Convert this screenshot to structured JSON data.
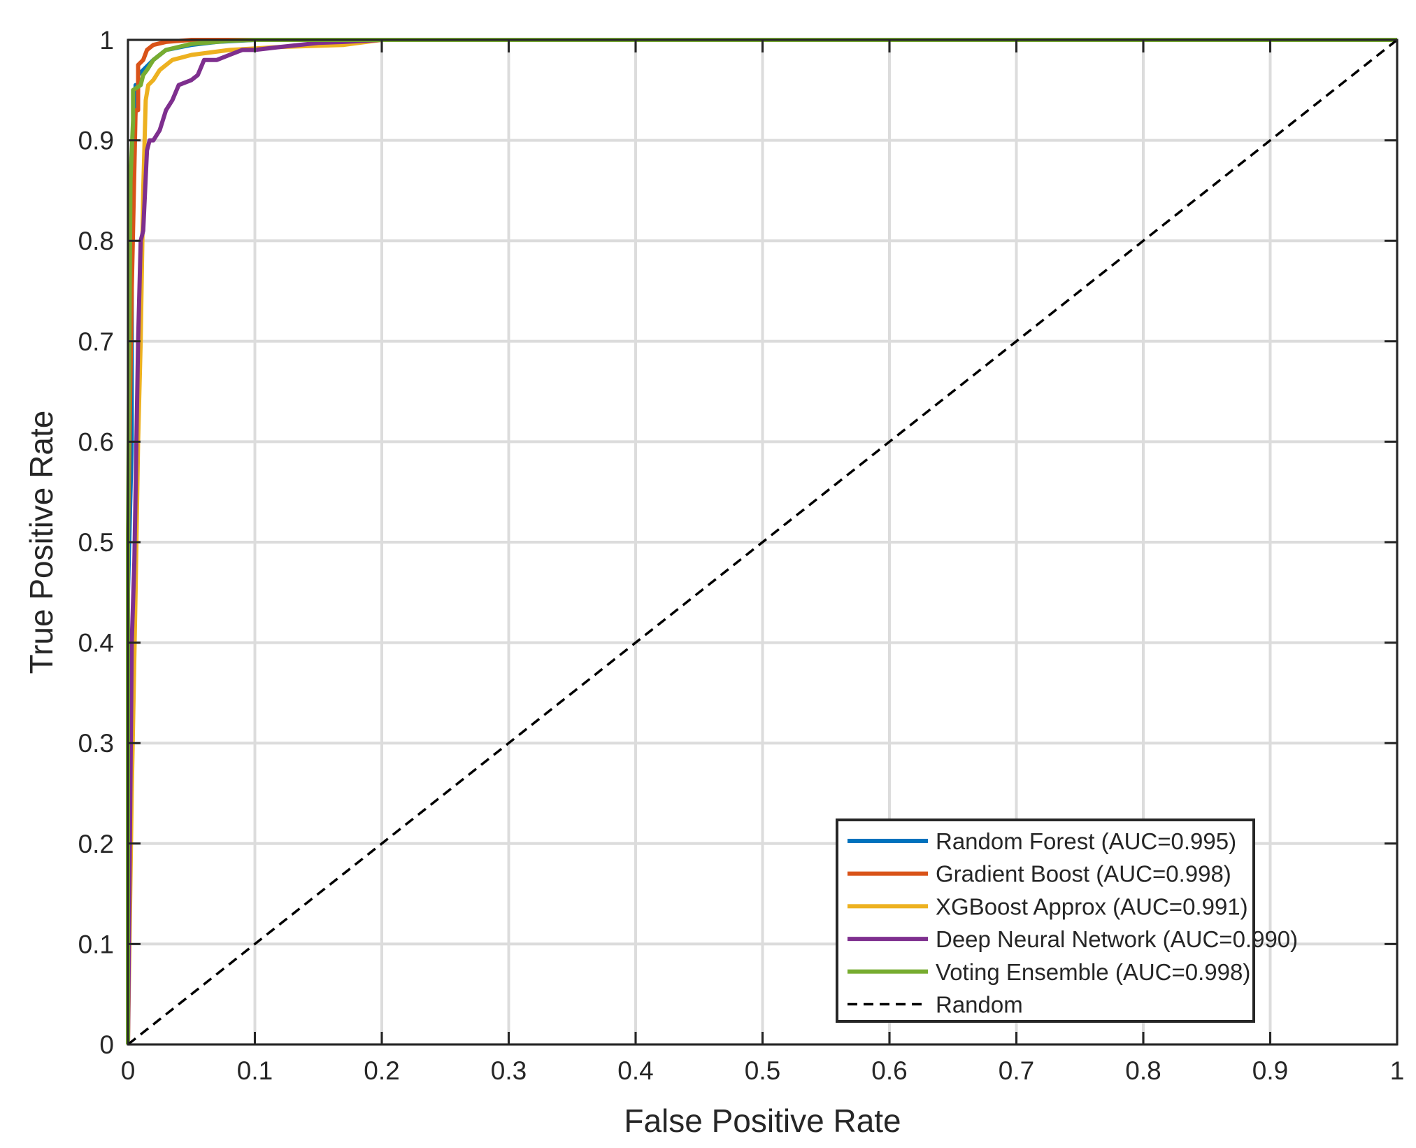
{
  "chart_data": {
    "type": "line",
    "title": "",
    "xlabel": "False Positive Rate",
    "ylabel": "True Positive Rate",
    "xlim": [
      0,
      1
    ],
    "ylim": [
      0,
      1
    ],
    "xticks": [
      0,
      0.1,
      0.2,
      0.3,
      0.4,
      0.5,
      0.6,
      0.7,
      0.8,
      0.9,
      1
    ],
    "yticks": [
      0,
      0.1,
      0.2,
      0.3,
      0.4,
      0.5,
      0.6,
      0.7,
      0.8,
      0.9,
      1
    ],
    "xtick_labels": [
      "0",
      "0.1",
      "0.2",
      "0.3",
      "0.4",
      "0.5",
      "0.6",
      "0.7",
      "0.8",
      "0.9",
      "1"
    ],
    "ytick_labels": [
      "0",
      "0.1",
      "0.2",
      "0.3",
      "0.4",
      "0.5",
      "0.6",
      "0.7",
      "0.8",
      "0.9",
      "1"
    ],
    "grid": true,
    "legend_position": "bottom-right",
    "series": [
      {
        "name": "Random Forest (AUC=0.995)",
        "color": "#0072BD",
        "dash": false,
        "x": [
          0,
          0,
          0.003,
          0.003,
          0.006,
          0.006,
          0.008,
          0.008,
          0.012,
          0.02,
          0.03,
          0.05,
          0.07,
          0.1,
          0.2,
          0.3,
          1
        ],
        "y": [
          0,
          0.45,
          0.6,
          0.85,
          0.93,
          0.955,
          0.955,
          0.965,
          0.97,
          0.98,
          0.99,
          0.995,
          0.998,
          1,
          1,
          1,
          1
        ]
      },
      {
        "name": "Gradient Boost (AUC=0.998)",
        "color": "#D95319",
        "dash": false,
        "x": [
          0,
          0,
          0.003,
          0.005,
          0.006,
          0.008,
          0.008,
          0.012,
          0.015,
          0.02,
          0.03,
          0.05,
          0.08,
          0.1,
          1
        ],
        "y": [
          0,
          0.5,
          0.75,
          0.87,
          0.93,
          0.93,
          0.975,
          0.98,
          0.99,
          0.995,
          0.998,
          1,
          1,
          1,
          1
        ]
      },
      {
        "name": "XGBoost Approx (AUC=0.991)",
        "color": "#EDB120",
        "dash": false,
        "x": [
          0,
          0.003,
          0.006,
          0.008,
          0.01,
          0.012,
          0.014,
          0.016,
          0.02,
          0.025,
          0.035,
          0.05,
          0.08,
          0.12,
          0.17,
          0.2,
          0.3,
          1
        ],
        "y": [
          0,
          0.25,
          0.45,
          0.6,
          0.7,
          0.85,
          0.94,
          0.955,
          0.96,
          0.97,
          0.98,
          0.985,
          0.99,
          0.993,
          0.995,
          1,
          1,
          1
        ]
      },
      {
        "name": "Deep Neural Network (AUC=0.990)",
        "color": "#7E2F8E",
        "dash": false,
        "x": [
          0,
          0.003,
          0.005,
          0.006,
          0.008,
          0.01,
          0.012,
          0.015,
          0.017,
          0.02,
          0.025,
          0.03,
          0.035,
          0.04,
          0.05,
          0.055,
          0.06,
          0.07,
          0.08,
          0.09,
          0.1,
          0.12,
          0.15,
          0.17,
          0.2,
          0.3,
          1
        ],
        "y": [
          0,
          0.4,
          0.48,
          0.55,
          0.7,
          0.8,
          0.81,
          0.89,
          0.9,
          0.9,
          0.91,
          0.93,
          0.94,
          0.955,
          0.96,
          0.965,
          0.98,
          0.98,
          0.985,
          0.99,
          0.99,
          0.993,
          0.997,
          0.998,
          1,
          1,
          1
        ]
      },
      {
        "name": "Voting Ensemble (AUC=0.998)",
        "color": "#77AC30",
        "dash": false,
        "x": [
          0,
          0,
          0.002,
          0.004,
          0.004,
          0.01,
          0.012,
          0.015,
          0.02,
          0.03,
          0.05,
          0.08,
          0.1,
          1
        ],
        "y": [
          0,
          0.5,
          0.86,
          0.92,
          0.95,
          0.955,
          0.965,
          0.97,
          0.98,
          0.99,
          0.996,
          0.999,
          1,
          1
        ]
      },
      {
        "name": "Random",
        "color": "#000000",
        "dash": true,
        "x": [
          0,
          1
        ],
        "y": [
          0,
          1
        ]
      }
    ]
  }
}
